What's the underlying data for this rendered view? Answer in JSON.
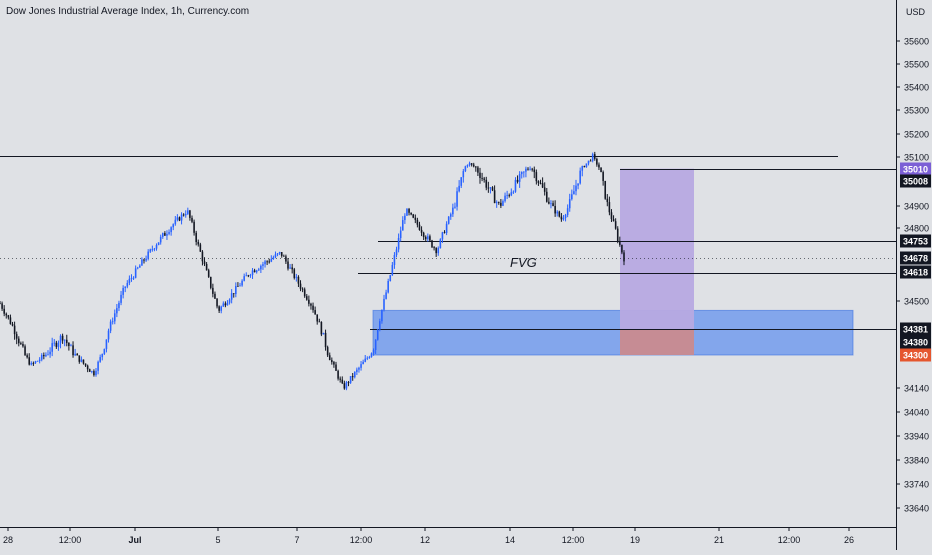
{
  "header": {
    "title": "Dow Jones Industrial Average Index, 1h, Currency.com"
  },
  "chart_data": {
    "type": "candlestick",
    "currency": "USD",
    "ylim": [
      33560,
      35740
    ],
    "price_ticks": [
      35600,
      35500,
      35400,
      35300,
      35200,
      35100,
      34900,
      34800,
      34500,
      34140,
      34040,
      33940,
      33840,
      33740,
      33640
    ],
    "time_ticks": [
      "28",
      "12:00",
      "Jul",
      "5",
      "7",
      "12:00",
      "12",
      "14",
      "12:00",
      "19",
      "21",
      "12:00",
      "26"
    ],
    "colors": {
      "background": "#dfe1e5",
      "up_candle": "#2962ff",
      "down_candle": "#131722",
      "fvg_zone": "#5b8def",
      "target_zone": "#b7a9e2",
      "stop_zone": "#c98a8f",
      "label_dark": "#131722",
      "label_purple": "#7b5fd6",
      "label_red": "#e5562e"
    },
    "levels": [
      {
        "name": "top-line",
        "price": 35105
      },
      {
        "name": "entry-line",
        "price": 35008
      },
      {
        "name": "level-34753",
        "price": 34753
      },
      {
        "name": "level-34618",
        "price": 34618
      },
      {
        "name": "level-34381",
        "price": 34381
      }
    ],
    "price_labels": [
      {
        "text": "35010",
        "price": 35010,
        "style": "purple"
      },
      {
        "text": "35008",
        "price": 35008,
        "style": "dark"
      },
      {
        "text": "34753",
        "price": 34753,
        "style": "dark"
      },
      {
        "text": "34678",
        "price": 34678,
        "style": "dark"
      },
      {
        "text": "34618",
        "price": 34618,
        "style": "dark"
      },
      {
        "text": "34381",
        "price": 34381,
        "style": "dark"
      },
      {
        "text": "34380",
        "price": 34380,
        "style": "dark"
      },
      {
        "text": "34300",
        "price": 34300,
        "style": "red"
      }
    ],
    "current_price": 34678,
    "fvg_zone": {
      "top": 34460,
      "bottom": 34300
    },
    "trade": {
      "entry": 35008,
      "target": 34381,
      "stop": 34300
    },
    "annotation": "FVG",
    "series": [
      {
        "t": "Jun 28",
        "price": 34490
      },
      {
        "t": "Jun 29",
        "price": 34250
      },
      {
        "t": "Jun 30",
        "price": 34360
      },
      {
        "t": "Jul 1",
        "price": 34210
      },
      {
        "t": "Jul 2",
        "price": 34560
      },
      {
        "t": "Jul 3",
        "price": 34740
      },
      {
        "t": "Jul 4",
        "price": 34880
      },
      {
        "t": "Jul 5",
        "price": 34460
      },
      {
        "t": "Jul 6",
        "price": 34620
      },
      {
        "t": "Jul 7",
        "price": 34700
      },
      {
        "t": "Jul 8",
        "price": 34480
      },
      {
        "t": "Jul 9",
        "price": 34140
      },
      {
        "t": "Jul 10",
        "price": 34330
      },
      {
        "t": "Jul 11",
        "price": 34880
      },
      {
        "t": "Jul 12",
        "price": 34710
      },
      {
        "t": "Jul 13",
        "price": 35050
      },
      {
        "t": "Jul 14",
        "price": 34900
      },
      {
        "t": "Jul 15",
        "price": 35020
      },
      {
        "t": "Jul 16",
        "price": 34840
      },
      {
        "t": "Jul 17",
        "price": 35100
      },
      {
        "t": "Jul 18",
        "price": 34678
      }
    ]
  }
}
